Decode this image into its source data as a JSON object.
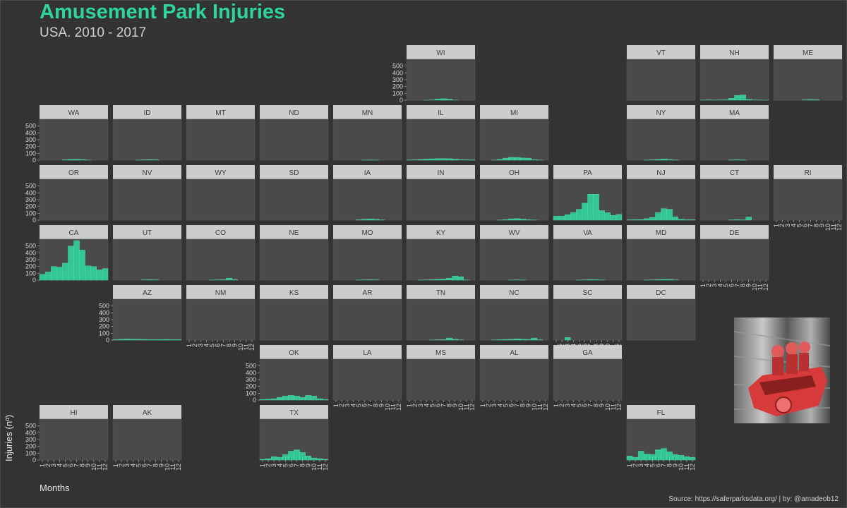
{
  "title": "Amusement Park Injuries",
  "subtitle": "USA. 2010 - 2017",
  "xlabel": "Months",
  "ylabel": "Injuries (nº)",
  "caption": "Source: https://saferparksdata.org/ | by: @amadeob12",
  "colors": {
    "bar": "#2fd49a",
    "panel": "#4a4a4a",
    "strip": "#cccccc",
    "background": "#333333"
  },
  "chart_data": {
    "type": "bar",
    "title": "Amusement Park Injuries",
    "subtitle": "USA. 2010 - 2017",
    "xlabel": "Months",
    "ylabel": "Injuries (nº)",
    "ylim": [
      0,
      600
    ],
    "y_ticks": [
      0,
      100,
      200,
      300,
      400,
      500
    ],
    "categories": [
      "1",
      "2",
      "3",
      "4",
      "5",
      "6",
      "7",
      "8",
      "9",
      "10",
      "11",
      "12"
    ],
    "series": [
      {
        "name": "WI",
        "row": 1,
        "col": 6,
        "values": [
          0,
          0,
          0,
          1,
          4,
          18,
          22,
          16,
          2,
          0,
          0,
          0
        ]
      },
      {
        "name": "VT",
        "row": 1,
        "col": 9,
        "values": [
          0,
          0,
          0,
          0,
          0,
          0,
          0,
          0,
          0,
          0,
          0,
          0
        ]
      },
      {
        "name": "NH",
        "row": 1,
        "col": 10,
        "values": [
          2,
          6,
          2,
          4,
          6,
          28,
          70,
          78,
          14,
          4,
          2,
          1
        ]
      },
      {
        "name": "ME",
        "row": 1,
        "col": 11,
        "values": [
          0,
          0,
          0,
          0,
          0,
          6,
          10,
          6,
          0,
          0,
          0,
          0
        ]
      },
      {
        "name": "WA",
        "row": 2,
        "col": 1,
        "values": [
          0,
          0,
          0,
          0,
          6,
          12,
          14,
          10,
          2,
          0,
          0,
          0
        ]
      },
      {
        "name": "ID",
        "row": 2,
        "col": 2,
        "values": [
          0,
          0,
          0,
          0,
          2,
          6,
          10,
          6,
          0,
          0,
          0,
          0
        ]
      },
      {
        "name": "MT",
        "row": 2,
        "col": 3,
        "values": [
          0,
          0,
          0,
          0,
          0,
          0,
          0,
          0,
          0,
          0,
          0,
          0
        ]
      },
      {
        "name": "ND",
        "row": 2,
        "col": 4,
        "values": [
          0,
          0,
          0,
          0,
          0,
          0,
          0,
          0,
          0,
          0,
          0,
          0
        ]
      },
      {
        "name": "MN",
        "row": 2,
        "col": 5,
        "values": [
          0,
          0,
          0,
          0,
          0,
          2,
          4,
          2,
          0,
          0,
          0,
          0
        ]
      },
      {
        "name": "IL",
        "row": 2,
        "col": 6,
        "values": [
          4,
          6,
          12,
          16,
          20,
          24,
          24,
          22,
          16,
          10,
          6,
          4
        ]
      },
      {
        "name": "MI",
        "row": 2,
        "col": 7,
        "values": [
          0,
          0,
          2,
          12,
          30,
          42,
          40,
          34,
          30,
          8,
          2,
          0
        ]
      },
      {
        "name": "NY",
        "row": 2,
        "col": 9,
        "values": [
          0,
          0,
          0,
          2,
          6,
          12,
          18,
          10,
          4,
          0,
          0,
          0
        ]
      },
      {
        "name": "MA",
        "row": 2,
        "col": 10,
        "values": [
          0,
          0,
          0,
          0,
          0,
          4,
          6,
          4,
          0,
          0,
          0,
          0
        ]
      },
      {
        "name": "OR",
        "row": 3,
        "col": 1,
        "values": [
          0,
          0,
          0,
          0,
          0,
          0,
          0,
          0,
          0,
          0,
          0,
          0
        ]
      },
      {
        "name": "NV",
        "row": 3,
        "col": 2,
        "values": [
          0,
          0,
          0,
          0,
          0,
          0,
          0,
          0,
          0,
          0,
          0,
          0
        ]
      },
      {
        "name": "WY",
        "row": 3,
        "col": 3,
        "values": [
          0,
          0,
          0,
          0,
          0,
          0,
          0,
          0,
          0,
          0,
          0,
          0
        ]
      },
      {
        "name": "SD",
        "row": 3,
        "col": 4,
        "values": [
          0,
          0,
          0,
          0,
          0,
          0,
          0,
          0,
          0,
          0,
          0,
          0
        ]
      },
      {
        "name": "IA",
        "row": 3,
        "col": 5,
        "values": [
          0,
          0,
          0,
          0,
          6,
          14,
          18,
          14,
          4,
          0,
          0,
          0
        ]
      },
      {
        "name": "IN",
        "row": 3,
        "col": 6,
        "values": [
          0,
          0,
          0,
          0,
          0,
          0,
          0,
          0,
          0,
          0,
          0,
          0
        ]
      },
      {
        "name": "OH",
        "row": 3,
        "col": 7,
        "values": [
          0,
          0,
          0,
          2,
          8,
          20,
          24,
          16,
          6,
          2,
          0,
          0
        ]
      },
      {
        "name": "PA",
        "row": 3,
        "col": 8,
        "values": [
          60,
          60,
          80,
          110,
          160,
          250,
          380,
          380,
          140,
          110,
          70,
          85
        ]
      },
      {
        "name": "NJ",
        "row": 3,
        "col": 9,
        "values": [
          6,
          8,
          10,
          22,
          40,
          110,
          170,
          160,
          50,
          14,
          8,
          6
        ]
      },
      {
        "name": "CT",
        "row": 3,
        "col": 10,
        "values": [
          0,
          0,
          0,
          0,
          0,
          4,
          8,
          4,
          46,
          0,
          0,
          0
        ]
      },
      {
        "name": "RI",
        "row": 3,
        "col": 11,
        "values": [
          0,
          0,
          0,
          0,
          0,
          0,
          0,
          0,
          0,
          0,
          0,
          0
        ]
      },
      {
        "name": "CA",
        "row": 4,
        "col": 1,
        "values": [
          85,
          120,
          200,
          190,
          250,
          500,
          580,
          440,
          210,
          200,
          150,
          170
        ]
      },
      {
        "name": "UT",
        "row": 4,
        "col": 2,
        "values": [
          0,
          0,
          0,
          0,
          0,
          4,
          6,
          4,
          0,
          0,
          0,
          0
        ]
      },
      {
        "name": "CO",
        "row": 4,
        "col": 3,
        "values": [
          0,
          0,
          0,
          0,
          2,
          4,
          6,
          30,
          8,
          0,
          0,
          0
        ]
      },
      {
        "name": "NE",
        "row": 4,
        "col": 4,
        "values": [
          0,
          0,
          0,
          0,
          0,
          0,
          0,
          0,
          0,
          0,
          0,
          0
        ]
      },
      {
        "name": "MO",
        "row": 4,
        "col": 5,
        "values": [
          0,
          0,
          0,
          0,
          2,
          4,
          6,
          4,
          0,
          0,
          0,
          0
        ]
      },
      {
        "name": "KY",
        "row": 4,
        "col": 6,
        "values": [
          0,
          0,
          2,
          4,
          8,
          14,
          16,
          30,
          60,
          50,
          2,
          0
        ]
      },
      {
        "name": "WV",
        "row": 4,
        "col": 7,
        "values": [
          0,
          0,
          0,
          0,
          0,
          2,
          4,
          2,
          0,
          0,
          0,
          0
        ]
      },
      {
        "name": "VA",
        "row": 4,
        "col": 8,
        "values": [
          0,
          0,
          0,
          0,
          2,
          4,
          8,
          6,
          2,
          0,
          0,
          0
        ]
      },
      {
        "name": "MD",
        "row": 4,
        "col": 9,
        "values": [
          0,
          0,
          0,
          2,
          4,
          8,
          12,
          10,
          4,
          0,
          0,
          0
        ]
      },
      {
        "name": "DE",
        "row": 4,
        "col": 10,
        "values": [
          0,
          0,
          0,
          0,
          0,
          0,
          0,
          0,
          0,
          0,
          0,
          0
        ]
      },
      {
        "name": "AZ",
        "row": 5,
        "col": 2,
        "values": [
          8,
          12,
          16,
          14,
          12,
          10,
          8,
          6,
          8,
          10,
          8,
          6
        ]
      },
      {
        "name": "NM",
        "row": 5,
        "col": 3,
        "values": [
          0,
          0,
          0,
          0,
          0,
          0,
          0,
          0,
          0,
          0,
          0,
          0
        ]
      },
      {
        "name": "KS",
        "row": 5,
        "col": 4,
        "values": [
          0,
          0,
          0,
          0,
          0,
          0,
          0,
          0,
          0,
          0,
          0,
          0
        ]
      },
      {
        "name": "AR",
        "row": 5,
        "col": 5,
        "values": [
          0,
          0,
          0,
          0,
          0,
          0,
          0,
          0,
          0,
          0,
          0,
          0
        ]
      },
      {
        "name": "TN",
        "row": 5,
        "col": 6,
        "values": [
          0,
          0,
          0,
          0,
          2,
          6,
          8,
          30,
          14,
          4,
          0,
          0
        ]
      },
      {
        "name": "NC",
        "row": 5,
        "col": 7,
        "values": [
          0,
          0,
          2,
          6,
          10,
          14,
          18,
          14,
          10,
          30,
          6,
          0
        ]
      },
      {
        "name": "SC",
        "row": 5,
        "col": 8,
        "values": [
          0,
          0,
          40,
          0,
          0,
          0,
          0,
          0,
          0,
          0,
          0,
          0
        ]
      },
      {
        "name": "DC",
        "row": 5,
        "col": 9,
        "values": [
          0,
          0,
          0,
          0,
          0,
          0,
          0,
          0,
          0,
          0,
          0,
          0
        ]
      },
      {
        "name": "OK",
        "row": 6,
        "col": 4,
        "values": [
          10,
          14,
          20,
          40,
          60,
          70,
          60,
          40,
          70,
          60,
          20,
          10
        ]
      },
      {
        "name": "LA",
        "row": 6,
        "col": 5,
        "values": [
          0,
          0,
          0,
          0,
          0,
          0,
          0,
          0,
          0,
          0,
          0,
          0
        ]
      },
      {
        "name": "MS",
        "row": 6,
        "col": 6,
        "values": [
          0,
          0,
          0,
          0,
          0,
          0,
          0,
          0,
          0,
          0,
          0,
          0
        ]
      },
      {
        "name": "AL",
        "row": 6,
        "col": 7,
        "values": [
          0,
          0,
          0,
          0,
          0,
          0,
          0,
          0,
          0,
          0,
          0,
          0
        ]
      },
      {
        "name": "GA",
        "row": 6,
        "col": 8,
        "values": [
          0,
          0,
          0,
          0,
          0,
          0,
          0,
          0,
          0,
          0,
          0,
          0
        ]
      },
      {
        "name": "HI",
        "row": 7,
        "col": 1,
        "values": [
          0,
          0,
          0,
          0,
          0,
          0,
          0,
          0,
          0,
          0,
          0,
          0
        ]
      },
      {
        "name": "AK",
        "row": 7,
        "col": 2,
        "values": [
          0,
          0,
          0,
          0,
          0,
          0,
          0,
          0,
          0,
          0,
          0,
          0
        ]
      },
      {
        "name": "TX",
        "row": 7,
        "col": 4,
        "values": [
          10,
          20,
          50,
          40,
          80,
          130,
          150,
          110,
          60,
          30,
          20,
          10
        ]
      },
      {
        "name": "FL",
        "row": 7,
        "col": 9,
        "values": [
          60,
          40,
          130,
          90,
          80,
          150,
          170,
          120,
          80,
          70,
          50,
          40
        ]
      }
    ],
    "y_axis_panels": [
      "WI",
      "WA",
      "OR",
      "CA",
      "AZ",
      "OK",
      "HI"
    ],
    "x_axis_panels": [
      "RI",
      "DE",
      "NM",
      "LA",
      "MS",
      "AL",
      "GA",
      "SC",
      "HI",
      "AK",
      "TX",
      "FL"
    ]
  }
}
